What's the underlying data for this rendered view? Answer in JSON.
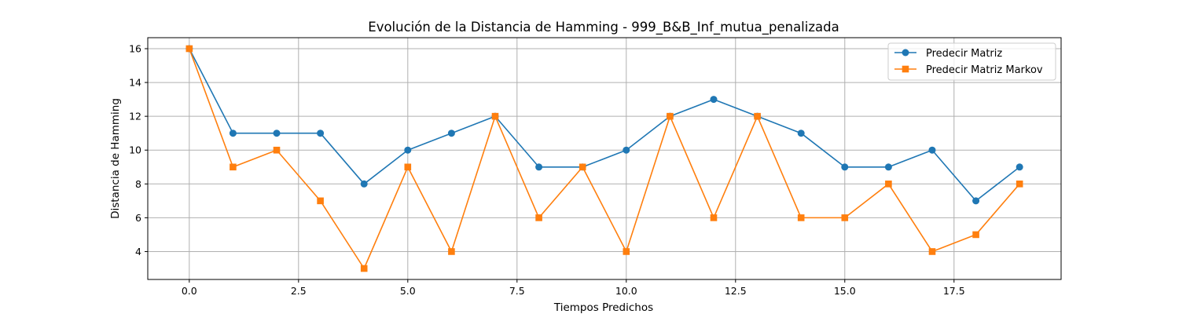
{
  "chart_data": {
    "type": "line",
    "title": "Evolución de la Distancia de Hamming - 999_B&B_Inf_mutua_penalizada",
    "xlabel": "Tiempos Predichos",
    "ylabel": "Distancia de Hamming",
    "xlim": [
      -0.95,
      19.95
    ],
    "ylim": [
      2.35,
      16.65
    ],
    "xticks": [
      0.0,
      2.5,
      5.0,
      7.5,
      10.0,
      12.5,
      15.0,
      17.5
    ],
    "xtick_labels": [
      "0.0",
      "2.5",
      "5.0",
      "7.5",
      "10.0",
      "12.5",
      "15.0",
      "17.5"
    ],
    "yticks": [
      4,
      6,
      8,
      10,
      12,
      14,
      16
    ],
    "ytick_labels": [
      "4",
      "6",
      "8",
      "10",
      "12",
      "14",
      "16"
    ],
    "grid": true,
    "legend_position": "top-right",
    "x": [
      0,
      1,
      2,
      3,
      4,
      5,
      6,
      7,
      8,
      9,
      10,
      11,
      12,
      13,
      14,
      15,
      16,
      17,
      18,
      19
    ],
    "series": [
      {
        "name": "Predecir Matriz",
        "color": "#1f77b4",
        "marker": "circle",
        "values": [
          16,
          11,
          11,
          11,
          8,
          10,
          11,
          12,
          9,
          9,
          10,
          12,
          13,
          12,
          11,
          9,
          9,
          10,
          7,
          9
        ]
      },
      {
        "name": "Predecir Matriz Markov",
        "color": "#ff7f0e",
        "marker": "square",
        "values": [
          16,
          9,
          10,
          7,
          3,
          9,
          4,
          12,
          6,
          9,
          4,
          12,
          6,
          12,
          6,
          6,
          8,
          4,
          5,
          8
        ]
      }
    ]
  }
}
